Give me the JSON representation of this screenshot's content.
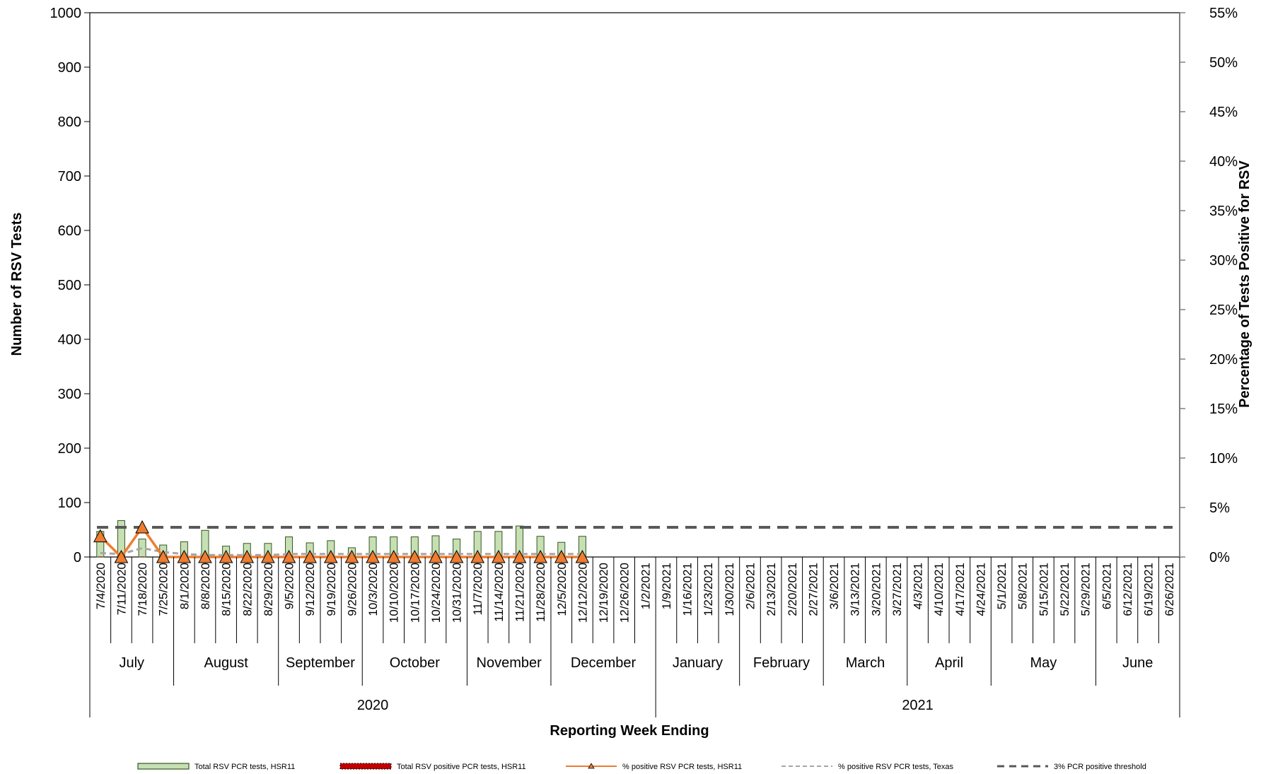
{
  "chart_data": {
    "type": "bar",
    "title": "",
    "xlabel": "Reporting Week Ending",
    "ylabel": "Number of RSV Tests",
    "y2label": "Percentage of Tests Positive for RSV",
    "ylim": [
      0,
      1000
    ],
    "y_ticks": [
      "0",
      "100",
      "200",
      "300",
      "400",
      "500",
      "600",
      "700",
      "800",
      "900",
      "1000"
    ],
    "y2lim": [
      0,
      55
    ],
    "y2_ticks": [
      "0%",
      "5%",
      "10%",
      "15%",
      "20%",
      "25%",
      "30%",
      "35%",
      "40%",
      "45%",
      "50%",
      "55%"
    ],
    "grid": false,
    "legend_position": "bottom",
    "categories": [
      "7/4/2020",
      "7/11/2020",
      "7/18/2020",
      "7/25/2020",
      "8/1/2020",
      "8/8/2020",
      "8/15/2020",
      "8/22/2020",
      "8/29/2020",
      "9/5/2020",
      "9/12/2020",
      "9/19/2020",
      "9/26/2020",
      "10/3/2020",
      "10/10/2020",
      "10/17/2020",
      "10/24/2020",
      "10/31/2020",
      "11/7/2020",
      "11/14/2020",
      "11/21/2020",
      "11/28/2020",
      "12/5/2020",
      "12/12/2020",
      "12/19/2020",
      "12/26/2020",
      "1/2/2021",
      "1/9/2021",
      "1/16/2021",
      "1/23/2021",
      "1/30/2021",
      "2/6/2021",
      "2/13/2021",
      "2/20/2021",
      "2/27/2021",
      "3/6/2021",
      "3/13/2021",
      "3/20/2021",
      "3/27/2021",
      "4/3/2021",
      "4/10/2021",
      "4/17/2021",
      "4/24/2021",
      "5/1/2021",
      "5/8/2021",
      "5/15/2021",
      "5/22/2021",
      "5/29/2021",
      "6/5/2021",
      "6/12/2021",
      "6/19/2021",
      "6/26/2021"
    ],
    "months": [
      {
        "label": "July",
        "span": 4
      },
      {
        "label": "August",
        "span": 5
      },
      {
        "label": "September",
        "span": 4
      },
      {
        "label": "October",
        "span": 5
      },
      {
        "label": "November",
        "span": 4
      },
      {
        "label": "December",
        "span": 5
      },
      {
        "label": "January",
        "span": 4
      },
      {
        "label": "February",
        "span": 4
      },
      {
        "label": "March",
        "span": 4
      },
      {
        "label": "April",
        "span": 4
      },
      {
        "label": "May",
        "span": 5
      },
      {
        "label": "June",
        "span": 4
      }
    ],
    "years": [
      {
        "label": "2020",
        "span": 27
      },
      {
        "label": "2021",
        "span": 25
      }
    ],
    "series": [
      {
        "name": "Total RSV PCR tests, HSR11",
        "type": "bar",
        "axis": "left",
        "color": "#c6e0b4",
        "edge": "#375623",
        "values": [
          47,
          67,
          33,
          22,
          28,
          49,
          20,
          25,
          25,
          37,
          26,
          30,
          17,
          37,
          37,
          37,
          39,
          33,
          47,
          47,
          57,
          38,
          27,
          38,
          null,
          null,
          null,
          null,
          null,
          null,
          null,
          null,
          null,
          null,
          null,
          null,
          null,
          null,
          null,
          null,
          null,
          null,
          null,
          null,
          null,
          null,
          null,
          null,
          null,
          null,
          null,
          null
        ]
      },
      {
        "name": "Total RSV positive PCR tests, HSR11",
        "type": "bar",
        "axis": "left",
        "color": "#c00000",
        "values": [
          1,
          0,
          1,
          0,
          0,
          0,
          0,
          0,
          0,
          0,
          0,
          0,
          0,
          0,
          0,
          0,
          0,
          0,
          0,
          0,
          0,
          0,
          0,
          0,
          null,
          null,
          null,
          null,
          null,
          null,
          null,
          null,
          null,
          null,
          null,
          null,
          null,
          null,
          null,
          null,
          null,
          null,
          null,
          null,
          null,
          null,
          null,
          null,
          null,
          null,
          null,
          null
        ]
      },
      {
        "name": "% positive RSV PCR tests, HSR11",
        "type": "line",
        "axis": "right",
        "color": "#ed7d31",
        "values": [
          2.1,
          0,
          3.0,
          0,
          0,
          0,
          0,
          0,
          0,
          0,
          0,
          0,
          0,
          0,
          0,
          0,
          0,
          0,
          0,
          0,
          0,
          0,
          0,
          0,
          null,
          null,
          null,
          null,
          null,
          null,
          null,
          null,
          null,
          null,
          null,
          null,
          null,
          null,
          null,
          null,
          null,
          null,
          null,
          null,
          null,
          null,
          null,
          null,
          null,
          null,
          null,
          null
        ]
      },
      {
        "name": "% positive RSV PCR tests, Texas",
        "type": "line",
        "axis": "right",
        "color": "#a6a6a6",
        "values": [
          0.4,
          0.3,
          0.9,
          0.5,
          0.3,
          0.2,
          0.2,
          0.2,
          0.2,
          0.3,
          0.3,
          0.3,
          0.3,
          0.3,
          0.3,
          0.3,
          0.3,
          0.3,
          0.3,
          0.3,
          0.3,
          0.3,
          0.3,
          0.3,
          null,
          null,
          null,
          null,
          null,
          null,
          null,
          null,
          null,
          null,
          null,
          null,
          null,
          null,
          null,
          null,
          null,
          null,
          null,
          null,
          null,
          null,
          null,
          null,
          null,
          null,
          null,
          null
        ]
      },
      {
        "name": "3% PCR positive threshold",
        "type": "line",
        "axis": "right",
        "color": "#595959",
        "constant": 3
      }
    ],
    "legend": [
      "Total RSV PCR tests, HSR11",
      "Total RSV positive PCR tests, HSR11",
      "% positive RSV PCR tests, HSR11",
      "% positive RSV PCR tests, Texas",
      "3% PCR positive threshold"
    ]
  }
}
